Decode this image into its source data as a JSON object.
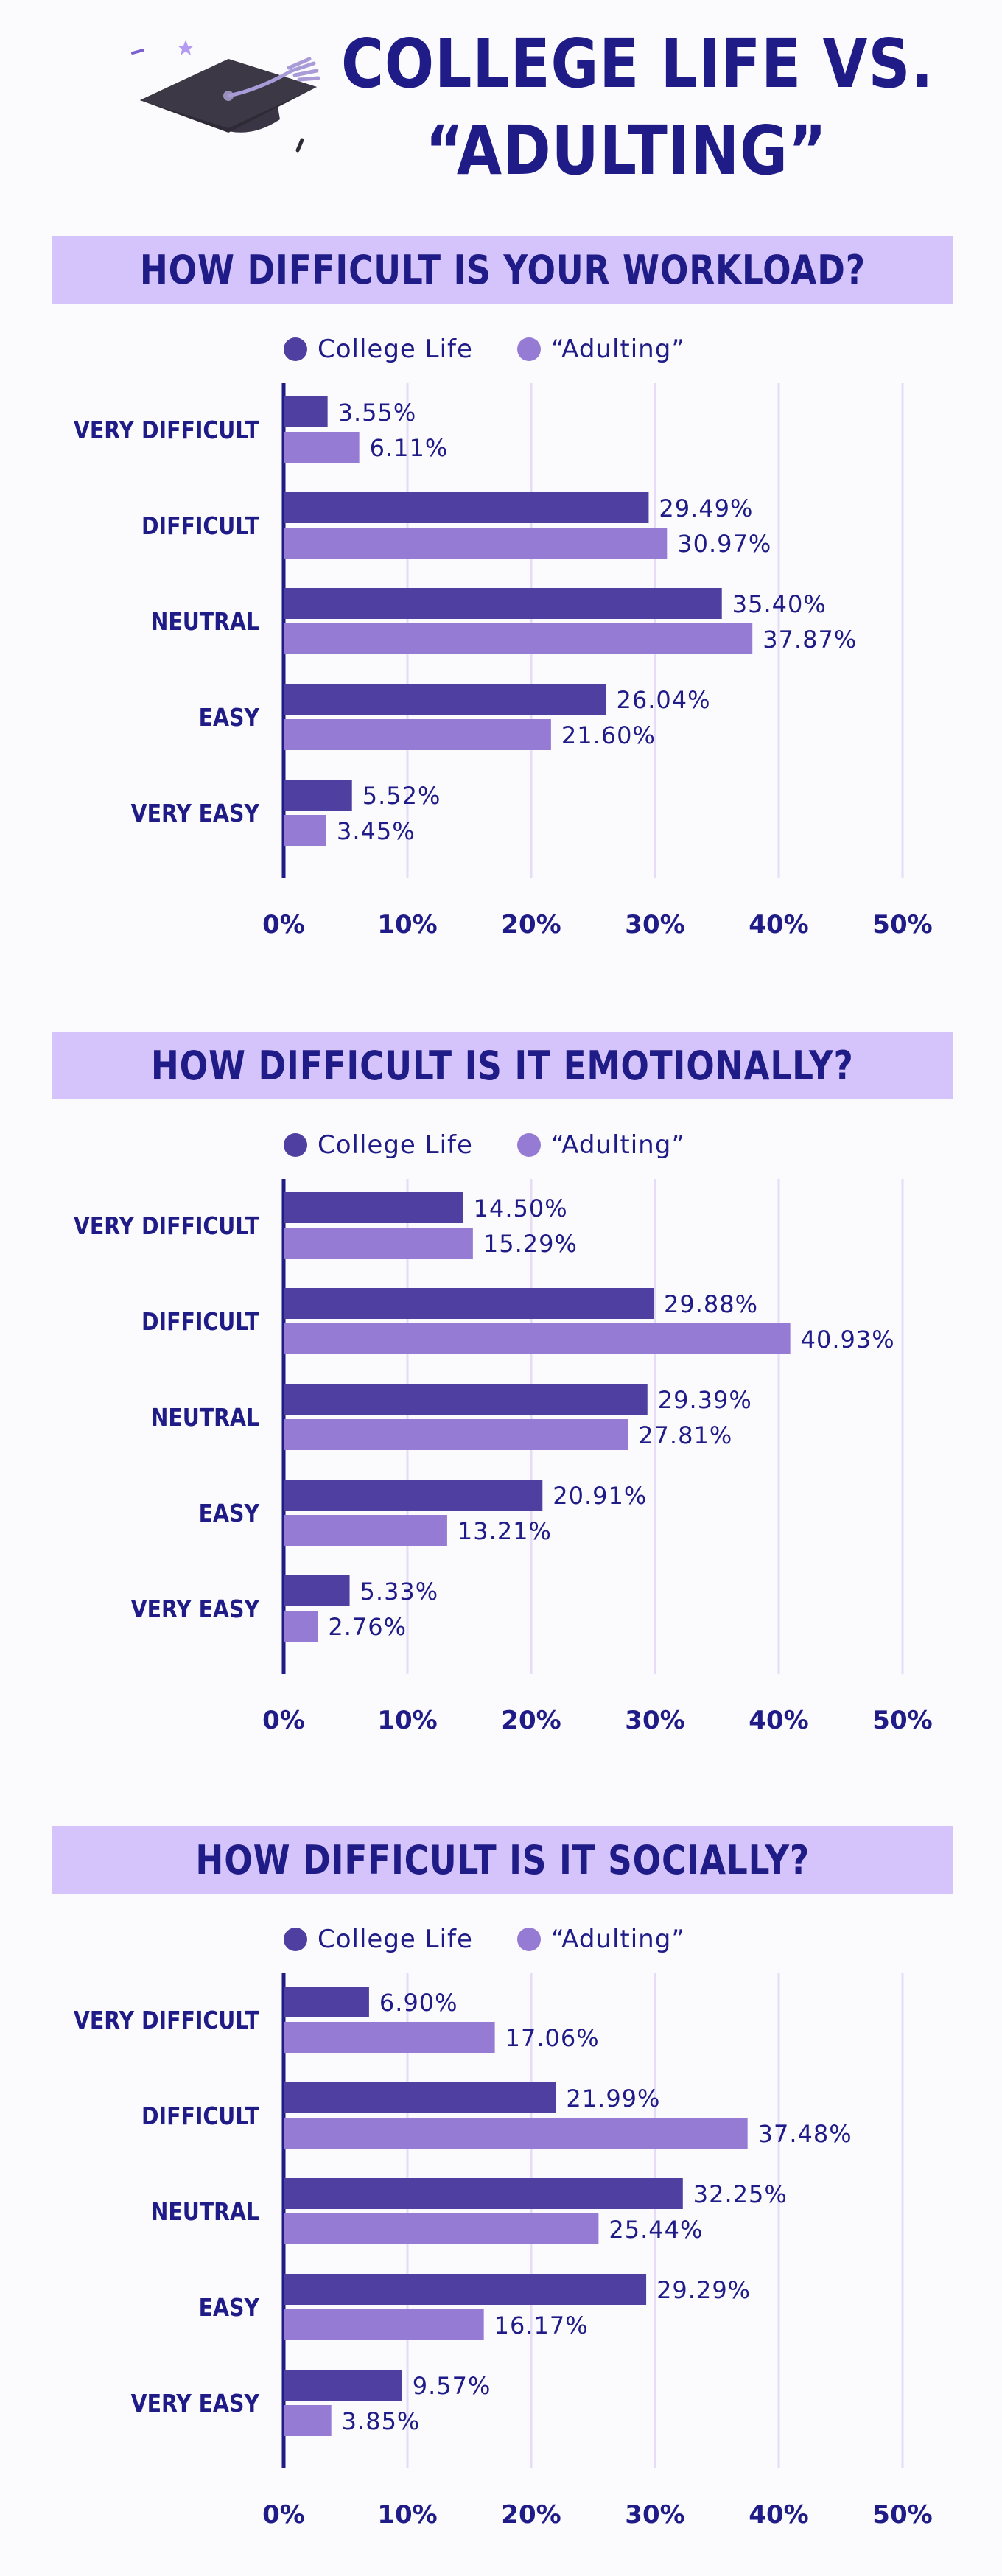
{
  "title": {
    "line1": "COLLEGE LIFE VS.",
    "line2": "“ADULTING”"
  },
  "colors": {
    "college": "#4e3fa1",
    "adulting": "#957bd4",
    "banner": "#d5c4fb",
    "text": "#1f1b87",
    "grid": "#e6dcf7"
  },
  "legend": {
    "college": "College Life",
    "adulting": "“Adulting”"
  },
  "chart_data": [
    {
      "type": "bar",
      "orientation": "horizontal",
      "title": "HOW DIFFICULT IS YOUR WORKLOAD?",
      "categories": [
        "VERY DIFFICULT",
        "DIFFICULT",
        "NEUTRAL",
        "EASY",
        "VERY EASY"
      ],
      "series": [
        {
          "name": "College Life",
          "values": [
            3.55,
            29.49,
            35.4,
            26.04,
            5.52
          ],
          "labels": [
            "3.55%",
            "29.49%",
            "35.40%",
            "26.04%",
            "5.52%"
          ]
        },
        {
          "name": "“Adulting”",
          "values": [
            6.11,
            30.97,
            37.87,
            21.6,
            3.45
          ],
          "labels": [
            "6.11%",
            "30.97%",
            "37.87%",
            "21.60%",
            "3.45%"
          ]
        }
      ],
      "xlim": [
        0,
        50
      ],
      "xticks": [
        "0%",
        "10%",
        "20%",
        "30%",
        "40%",
        "50%"
      ]
    },
    {
      "type": "bar",
      "orientation": "horizontal",
      "title": "HOW DIFFICULT IS IT EMOTIONALLY?",
      "categories": [
        "VERY DIFFICULT",
        "DIFFICULT",
        "NEUTRAL",
        "EASY",
        "VERY EASY"
      ],
      "series": [
        {
          "name": "College Life",
          "values": [
            14.5,
            29.88,
            29.39,
            20.91,
            5.33
          ],
          "labels": [
            "14.50%",
            "29.88%",
            "29.39%",
            "20.91%",
            "5.33%"
          ]
        },
        {
          "name": "“Adulting”",
          "values": [
            15.29,
            40.93,
            27.81,
            13.21,
            2.76
          ],
          "labels": [
            "15.29%",
            "40.93%",
            "27.81%",
            "13.21%",
            "2.76%"
          ]
        }
      ],
      "xlim": [
        0,
        50
      ],
      "xticks": [
        "0%",
        "10%",
        "20%",
        "30%",
        "40%",
        "50%"
      ]
    },
    {
      "type": "bar",
      "orientation": "horizontal",
      "title": "HOW DIFFICULT IS IT SOCIALLY?",
      "categories": [
        "VERY DIFFICULT",
        "DIFFICULT",
        "NEUTRAL",
        "EASY",
        "VERY EASY"
      ],
      "series": [
        {
          "name": "College Life",
          "values": [
            6.9,
            21.99,
            32.25,
            29.29,
            9.57
          ],
          "labels": [
            "6.90%",
            "21.99%",
            "32.25%",
            "29.29%",
            "9.57%"
          ]
        },
        {
          "name": "“Adulting”",
          "values": [
            17.06,
            37.48,
            25.44,
            16.17,
            3.85
          ],
          "labels": [
            "17.06%",
            "37.48%",
            "25.44%",
            "16.17%",
            "3.85%"
          ]
        }
      ],
      "xlim": [
        0,
        50
      ],
      "xticks": [
        "0%",
        "10%",
        "20%",
        "30%",
        "40%",
        "50%"
      ]
    }
  ]
}
